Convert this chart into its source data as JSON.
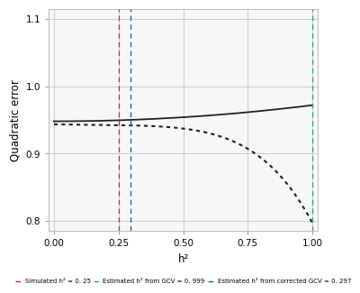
{
  "xlabel": "h²",
  "ylabel": "Quadratic error",
  "xlim": [
    -0.02,
    1.02
  ],
  "ylim": [
    0.785,
    1.115
  ],
  "xticks": [
    0.0,
    0.25,
    0.5,
    0.75,
    1.0
  ],
  "yticks": [
    0.8,
    0.9,
    1.0,
    1.1
  ],
  "grid_color": "#cccccc",
  "bg_color": "#ffffff",
  "panel_bg": "#f7f7f7",
  "solid_line_color": "#222222",
  "dotted_line_color": "#222222",
  "vline_red_x": 0.25,
  "vline_green_x": 0.999,
  "vline_blue_x": 0.297,
  "vline_red_color": "#c0392b",
  "vline_green_color": "#27ae60",
  "vline_blue_color": "#2c5f9e",
  "legend_label_red": "Simulated h² = 0. 25",
  "legend_label_green": "Estimated h² from GCV = 0. 999",
  "legend_label_blue": "Estimated h² from corrected GCV = 0. 297"
}
